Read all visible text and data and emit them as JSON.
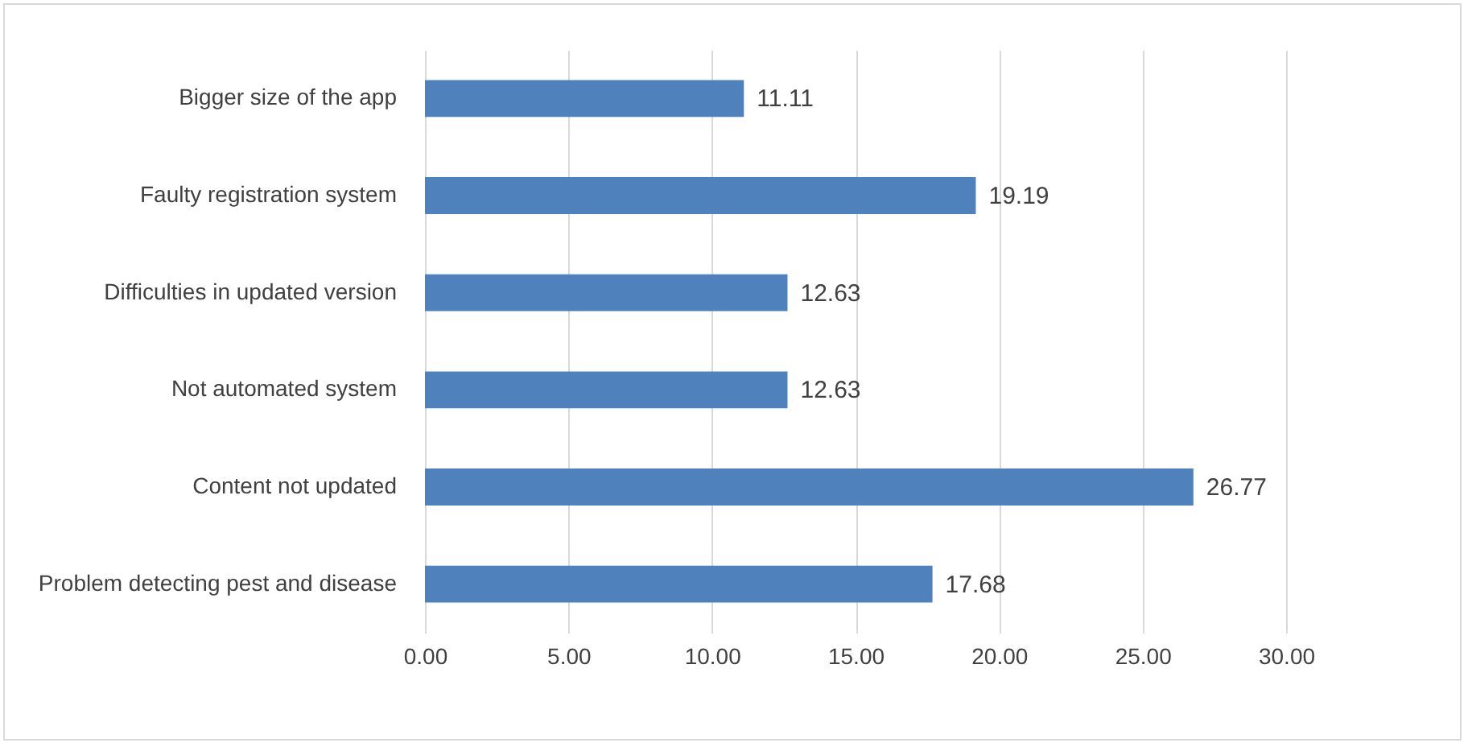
{
  "chart_data": {
    "type": "bar",
    "orientation": "horizontal",
    "categories": [
      "Bigger size of the app",
      "Faulty registration system",
      "Difficulties in updated version",
      "Not automated system",
      "Content not updated",
      "Problem detecting pest and disease"
    ],
    "values": [
      11.11,
      19.19,
      12.63,
      12.63,
      26.77,
      17.68
    ],
    "color": "#4f81bd",
    "xlim": [
      0,
      30
    ],
    "xticks": [
      {
        "value": 0,
        "label": "0.00"
      },
      {
        "value": 5,
        "label": "5.00"
      },
      {
        "value": 10,
        "label": "10.00"
      },
      {
        "value": 15,
        "label": "15.00"
      },
      {
        "value": 20,
        "label": "20.00"
      },
      {
        "value": 25,
        "label": "25.00"
      },
      {
        "value": 30,
        "label": "30.00"
      }
    ],
    "grid": "x",
    "data_labels": true
  }
}
